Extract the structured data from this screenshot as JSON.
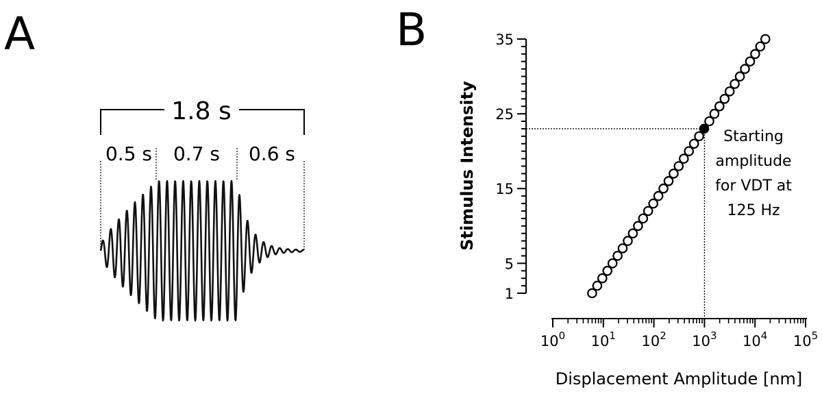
{
  "panels": {
    "a_label": "A",
    "b_label": "B"
  },
  "waveform": {
    "total_duration": "1.8 s",
    "segment_labels": [
      "0.5 s",
      "0.7 s",
      "0.6 s"
    ],
    "segment_durations_s": [
      0.5,
      0.7,
      0.6
    ]
  },
  "chart_data": {
    "type": "scatter",
    "x_scale": "log",
    "xlabel": "Displacement Amplitude [nm]",
    "ylabel": "Stimulus Intensity",
    "xlim": [
      1,
      100000
    ],
    "ylim": [
      1,
      35
    ],
    "y_ticks": [
      1,
      5,
      15,
      25,
      35
    ],
    "x_ticks": [
      {
        "base": "10",
        "exp": "0"
      },
      {
        "base": "10",
        "exp": "1"
      },
      {
        "base": "10",
        "exp": "2"
      },
      {
        "base": "10",
        "exp": "3"
      },
      {
        "base": "10",
        "exp": "4"
      },
      {
        "base": "10",
        "exp": "5"
      }
    ],
    "series": [
      {
        "marker": "open-circle",
        "intensity_range": [
          1,
          35
        ],
        "displacement_range_nm": [
          6,
          16000
        ]
      }
    ],
    "highlight_point": {
      "x": 1000,
      "y": 23,
      "marker": "filled-circle"
    },
    "annotation_lines": [
      "Starting",
      "amplitude",
      "for VDT at",
      "125 Hz"
    ]
  }
}
